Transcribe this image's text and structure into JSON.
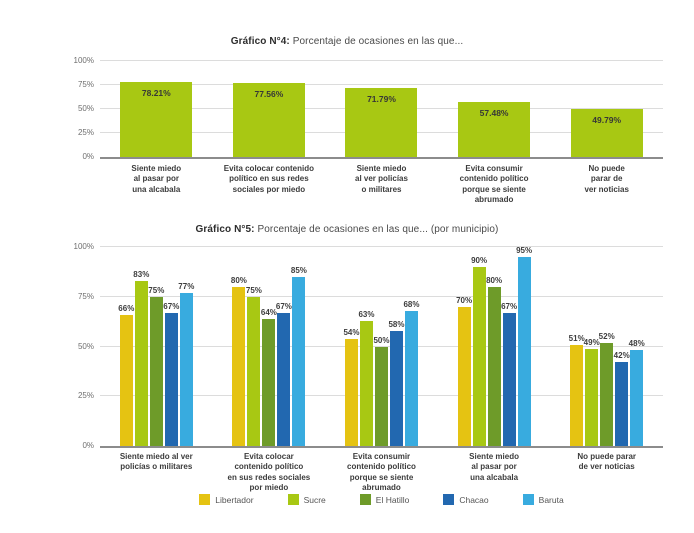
{
  "page": {
    "background": "#ffffff",
    "accent_colors": {
      "lime": "#a8c813",
      "yellow": "#e5c312",
      "dark_green": "#6e9b29",
      "blue": "#2268b0",
      "light_blue": "#38abdf",
      "gridline": "#dcdcdc",
      "axis_line": "#8c8c8c"
    }
  },
  "chart_data": [
    {
      "type": "bar",
      "title": "Gráfico N°4: Porcentaje de ocasiones en las que...",
      "title_bold": "Gráfico N°4:",
      "title_rest": " Porcentaje de ocasiones en las que...",
      "categories": [
        "Siente miedo\nal pasar por\nuna alcabala",
        "Evita colocar contenido\npolítico en sus redes\nsociales por miedo",
        "Siente miedo\nal ver policías\no militares",
        "Evita consumir\ncontenido político\nporque se siente\nabrumado",
        "No puede\nparar de\nver noticias"
      ],
      "values": [
        78.21,
        77.56,
        71.79,
        57.48,
        49.79
      ],
      "value_labels": [
        "78.21%",
        "77.56%",
        "71.79%",
        "57.48%",
        "49.79%"
      ],
      "bar_color": "#a8c813",
      "xlabel": "",
      "ylabel": "",
      "ylim": [
        0,
        100
      ],
      "grid": true,
      "legend_position": "none",
      "value_label_position": "inside-top",
      "yticks": [
        {
          "label": "100%",
          "v": 100
        },
        {
          "label": "75%",
          "v": 75
        },
        {
          "label": "50%",
          "v": 50
        },
        {
          "label": "25%",
          "v": 25
        },
        {
          "label": "0%",
          "v": 0
        }
      ]
    },
    {
      "type": "bar",
      "title": "Gráfico N°5: Porcentaje de ocasiones en las que... (por municipio)",
      "title_bold": "Gráfico N°5:",
      "title_rest": " Porcentaje de ocasiones en las que... (por municipio)",
      "categories": [
        "Siente miedo al ver\npolicías o militares",
        "Evita colocar\ncontenido político\nen sus redes sociales\npor miedo",
        "Evita consumir\ncontenido político\nporque se siente\nabrumado",
        "Siente miedo\nal pasar por\nuna alcabala",
        "No puede parar\nde ver noticias"
      ],
      "series": [
        {
          "name": "Libertador",
          "color": "#e5c312",
          "values": [
            66,
            80,
            54,
            70,
            51
          ],
          "value_labels": [
            "66%",
            "80%",
            "54%",
            "70%",
            "51%"
          ]
        },
        {
          "name": "Sucre",
          "color": "#a8c813",
          "values": [
            83,
            75,
            63,
            90,
            49
          ],
          "value_labels": [
            "83%",
            "75%",
            "63%",
            "90%",
            "49%"
          ]
        },
        {
          "name": "El Hatillo",
          "color": "#6e9b29",
          "values": [
            75,
            64,
            50,
            80,
            52
          ],
          "value_labels": [
            "75%",
            "64%",
            "50%",
            "80%",
            "52%"
          ]
        },
        {
          "name": "Chacao",
          "color": "#2268b0",
          "values": [
            67,
            67,
            58,
            67,
            42
          ],
          "value_labels": [
            "67%",
            "67%",
            "58%",
            "67%",
            "42%"
          ]
        },
        {
          "name": "Baruta",
          "color": "#38abdf",
          "values": [
            77,
            85,
            68,
            95,
            48
          ],
          "value_labels": [
            "77%",
            "85%",
            "68%",
            "95%",
            "48%"
          ]
        }
      ],
      "xlabel": "",
      "ylabel": "",
      "ylim": [
        0,
        100
      ],
      "grid": true,
      "legend_position": "bottom",
      "value_label_position": "above",
      "yticks": [
        {
          "label": "100%",
          "v": 100
        },
        {
          "label": "75%",
          "v": 75
        },
        {
          "label": "50%",
          "v": 50
        },
        {
          "label": "25%",
          "v": 25
        },
        {
          "label": "0%",
          "v": 0
        }
      ]
    }
  ]
}
